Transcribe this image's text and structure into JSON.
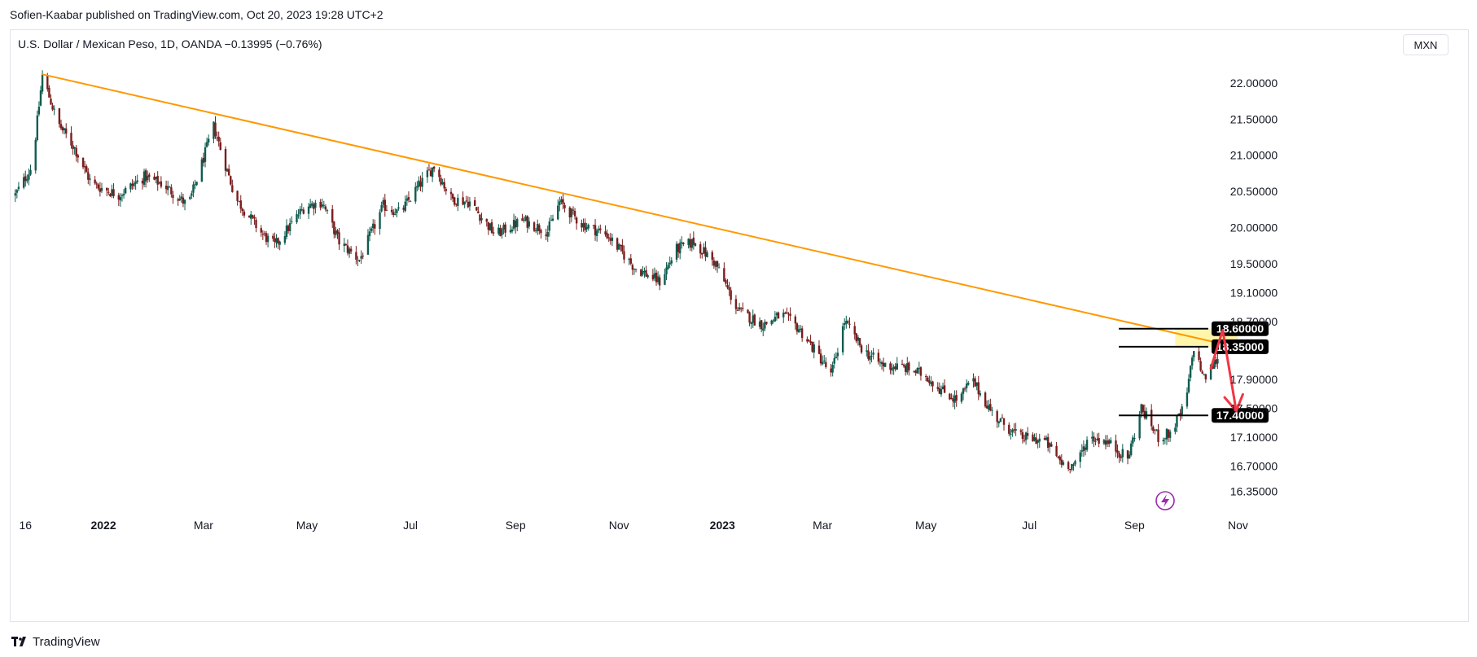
{
  "header": {
    "publisher_line": "Sofien-Kaabar published on TradingView.com, Oct 20, 2023 19:28 UTC+2",
    "symbol_line": "U.S. Dollar / Mexican Peso, 1D, OANDA  −0.13995 (−0.76%)",
    "currency_badge": "MXN"
  },
  "footer": {
    "brand": "TradingView",
    "logo_icon": "tradingview-logo-icon"
  },
  "colors": {
    "up": "#26a69a",
    "down": "#ef5350",
    "candle_up": "#0f5c4f",
    "candle_down": "#7a1d1d",
    "trendline": "#ff9800",
    "resistance_zone": "#fff59d",
    "projection_arrow": "#f23645",
    "level_line": "#000000",
    "live_icon": "#9c27b0"
  },
  "chart_data": {
    "type": "candlestick",
    "symbol": "USDMXN",
    "interval": "1D",
    "xlabels": [
      "16",
      "2022",
      "Mar",
      "May",
      "Jul",
      "Sep",
      "Nov",
      "2023",
      "Mar",
      "May",
      "Jul",
      "Sep",
      "Nov"
    ],
    "xlabels_bold": [
      "2022",
      "2023"
    ],
    "ytick_labels": [
      "22.00000",
      "21.50000",
      "21.00000",
      "20.50000",
      "20.00000",
      "19.50000",
      "19.10000",
      "18.70000",
      "17.90000",
      "17.50000",
      "17.10000",
      "16.70000",
      "16.35000"
    ],
    "ytick_values": [
      22.0,
      21.5,
      21.0,
      20.5,
      20.0,
      19.5,
      19.1,
      18.7,
      17.9,
      17.5,
      17.1,
      16.7,
      16.35
    ],
    "price_range": [
      16.05,
      22.45
    ],
    "date_range": [
      "2021-11-01",
      "2023-11-20"
    ],
    "close_path": [
      {
        "date": "2021-11-10",
        "close": 20.45
      },
      {
        "date": "2021-11-20",
        "close": 20.85
      },
      {
        "date": "2021-11-26",
        "close": 22.1
      },
      {
        "date": "2021-12-05",
        "close": 21.45
      },
      {
        "date": "2021-12-15",
        "close": 21.1
      },
      {
        "date": "2021-12-25",
        "close": 20.6
      },
      {
        "date": "2022-01-10",
        "close": 20.45
      },
      {
        "date": "2022-01-25",
        "close": 20.7
      },
      {
        "date": "2022-02-05",
        "close": 20.6
      },
      {
        "date": "2022-02-20",
        "close": 20.3
      },
      {
        "date": "2022-03-07",
        "close": 21.4
      },
      {
        "date": "2022-03-20",
        "close": 20.4
      },
      {
        "date": "2022-04-05",
        "close": 19.9
      },
      {
        "date": "2022-04-12",
        "close": 19.75
      },
      {
        "date": "2022-04-30",
        "close": 20.3
      },
      {
        "date": "2022-05-10",
        "close": 20.35
      },
      {
        "date": "2022-05-20",
        "close": 19.8
      },
      {
        "date": "2022-06-01",
        "close": 19.55
      },
      {
        "date": "2022-06-15",
        "close": 20.3
      },
      {
        "date": "2022-06-25",
        "close": 20.2
      },
      {
        "date": "2022-07-05",
        "close": 20.55
      },
      {
        "date": "2022-07-15",
        "close": 20.85
      },
      {
        "date": "2022-07-25",
        "close": 20.4
      },
      {
        "date": "2022-08-05",
        "close": 20.35
      },
      {
        "date": "2022-08-20",
        "close": 19.9
      },
      {
        "date": "2022-09-05",
        "close": 20.1
      },
      {
        "date": "2022-09-20",
        "close": 19.95
      },
      {
        "date": "2022-09-27",
        "close": 20.35
      },
      {
        "date": "2022-10-10",
        "close": 20.05
      },
      {
        "date": "2022-10-25",
        "close": 19.9
      },
      {
        "date": "2022-11-10",
        "close": 19.45
      },
      {
        "date": "2022-11-25",
        "close": 19.25
      },
      {
        "date": "2022-12-05",
        "close": 19.7
      },
      {
        "date": "2022-12-15",
        "close": 19.8
      },
      {
        "date": "2022-12-28",
        "close": 19.5
      },
      {
        "date": "2023-01-10",
        "close": 18.85
      },
      {
        "date": "2023-01-25",
        "close": 18.65
      },
      {
        "date": "2023-02-05",
        "close": 18.8
      },
      {
        "date": "2023-02-15",
        "close": 18.6
      },
      {
        "date": "2023-03-01",
        "close": 18.15
      },
      {
        "date": "2023-03-06",
        "close": 17.95
      },
      {
        "date": "2023-03-14",
        "close": 18.7
      },
      {
        "date": "2023-03-25",
        "close": 18.3
      },
      {
        "date": "2023-04-05",
        "close": 18.1
      },
      {
        "date": "2023-04-20",
        "close": 18.05
      },
      {
        "date": "2023-05-01",
        "close": 17.95
      },
      {
        "date": "2023-05-10",
        "close": 17.75
      },
      {
        "date": "2023-05-20",
        "close": 17.6
      },
      {
        "date": "2023-05-28",
        "close": 17.9
      },
      {
        "date": "2023-06-10",
        "close": 17.4
      },
      {
        "date": "2023-06-25",
        "close": 17.1
      },
      {
        "date": "2023-07-10",
        "close": 17.05
      },
      {
        "date": "2023-07-20",
        "close": 16.75
      },
      {
        "date": "2023-07-28",
        "close": 16.7
      },
      {
        "date": "2023-08-05",
        "close": 17.1
      },
      {
        "date": "2023-08-15",
        "close": 17.05
      },
      {
        "date": "2023-08-28",
        "close": 16.8
      },
      {
        "date": "2023-09-05",
        "close": 17.5
      },
      {
        "date": "2023-09-15",
        "close": 17.1
      },
      {
        "date": "2023-09-22",
        "close": 17.15
      },
      {
        "date": "2023-10-01",
        "close": 17.55
      },
      {
        "date": "2023-10-06",
        "close": 18.35
      },
      {
        "date": "2023-10-12",
        "close": 17.9
      },
      {
        "date": "2023-10-20",
        "close": 18.2
      }
    ],
    "trendline": {
      "start": {
        "date": "2021-11-26",
        "price": 22.12
      },
      "end": {
        "date": "2023-11-01",
        "price": 18.34
      }
    },
    "levels": [
      {
        "value": 18.6,
        "label": "18.60000"
      },
      {
        "value": 18.35,
        "label": "18.35000"
      },
      {
        "value": 17.4,
        "label": "17.40000"
      }
    ],
    "resistance_zone": {
      "from_date": "2023-09-25",
      "to_date": "2023-11-01",
      "low": 18.35,
      "high": 18.6
    },
    "projection": [
      {
        "date": "2023-10-16",
        "price": 18.05
      },
      {
        "date": "2023-10-23",
        "price": 18.58
      },
      {
        "date": "2023-10-31",
        "price": 17.46
      }
    ]
  }
}
